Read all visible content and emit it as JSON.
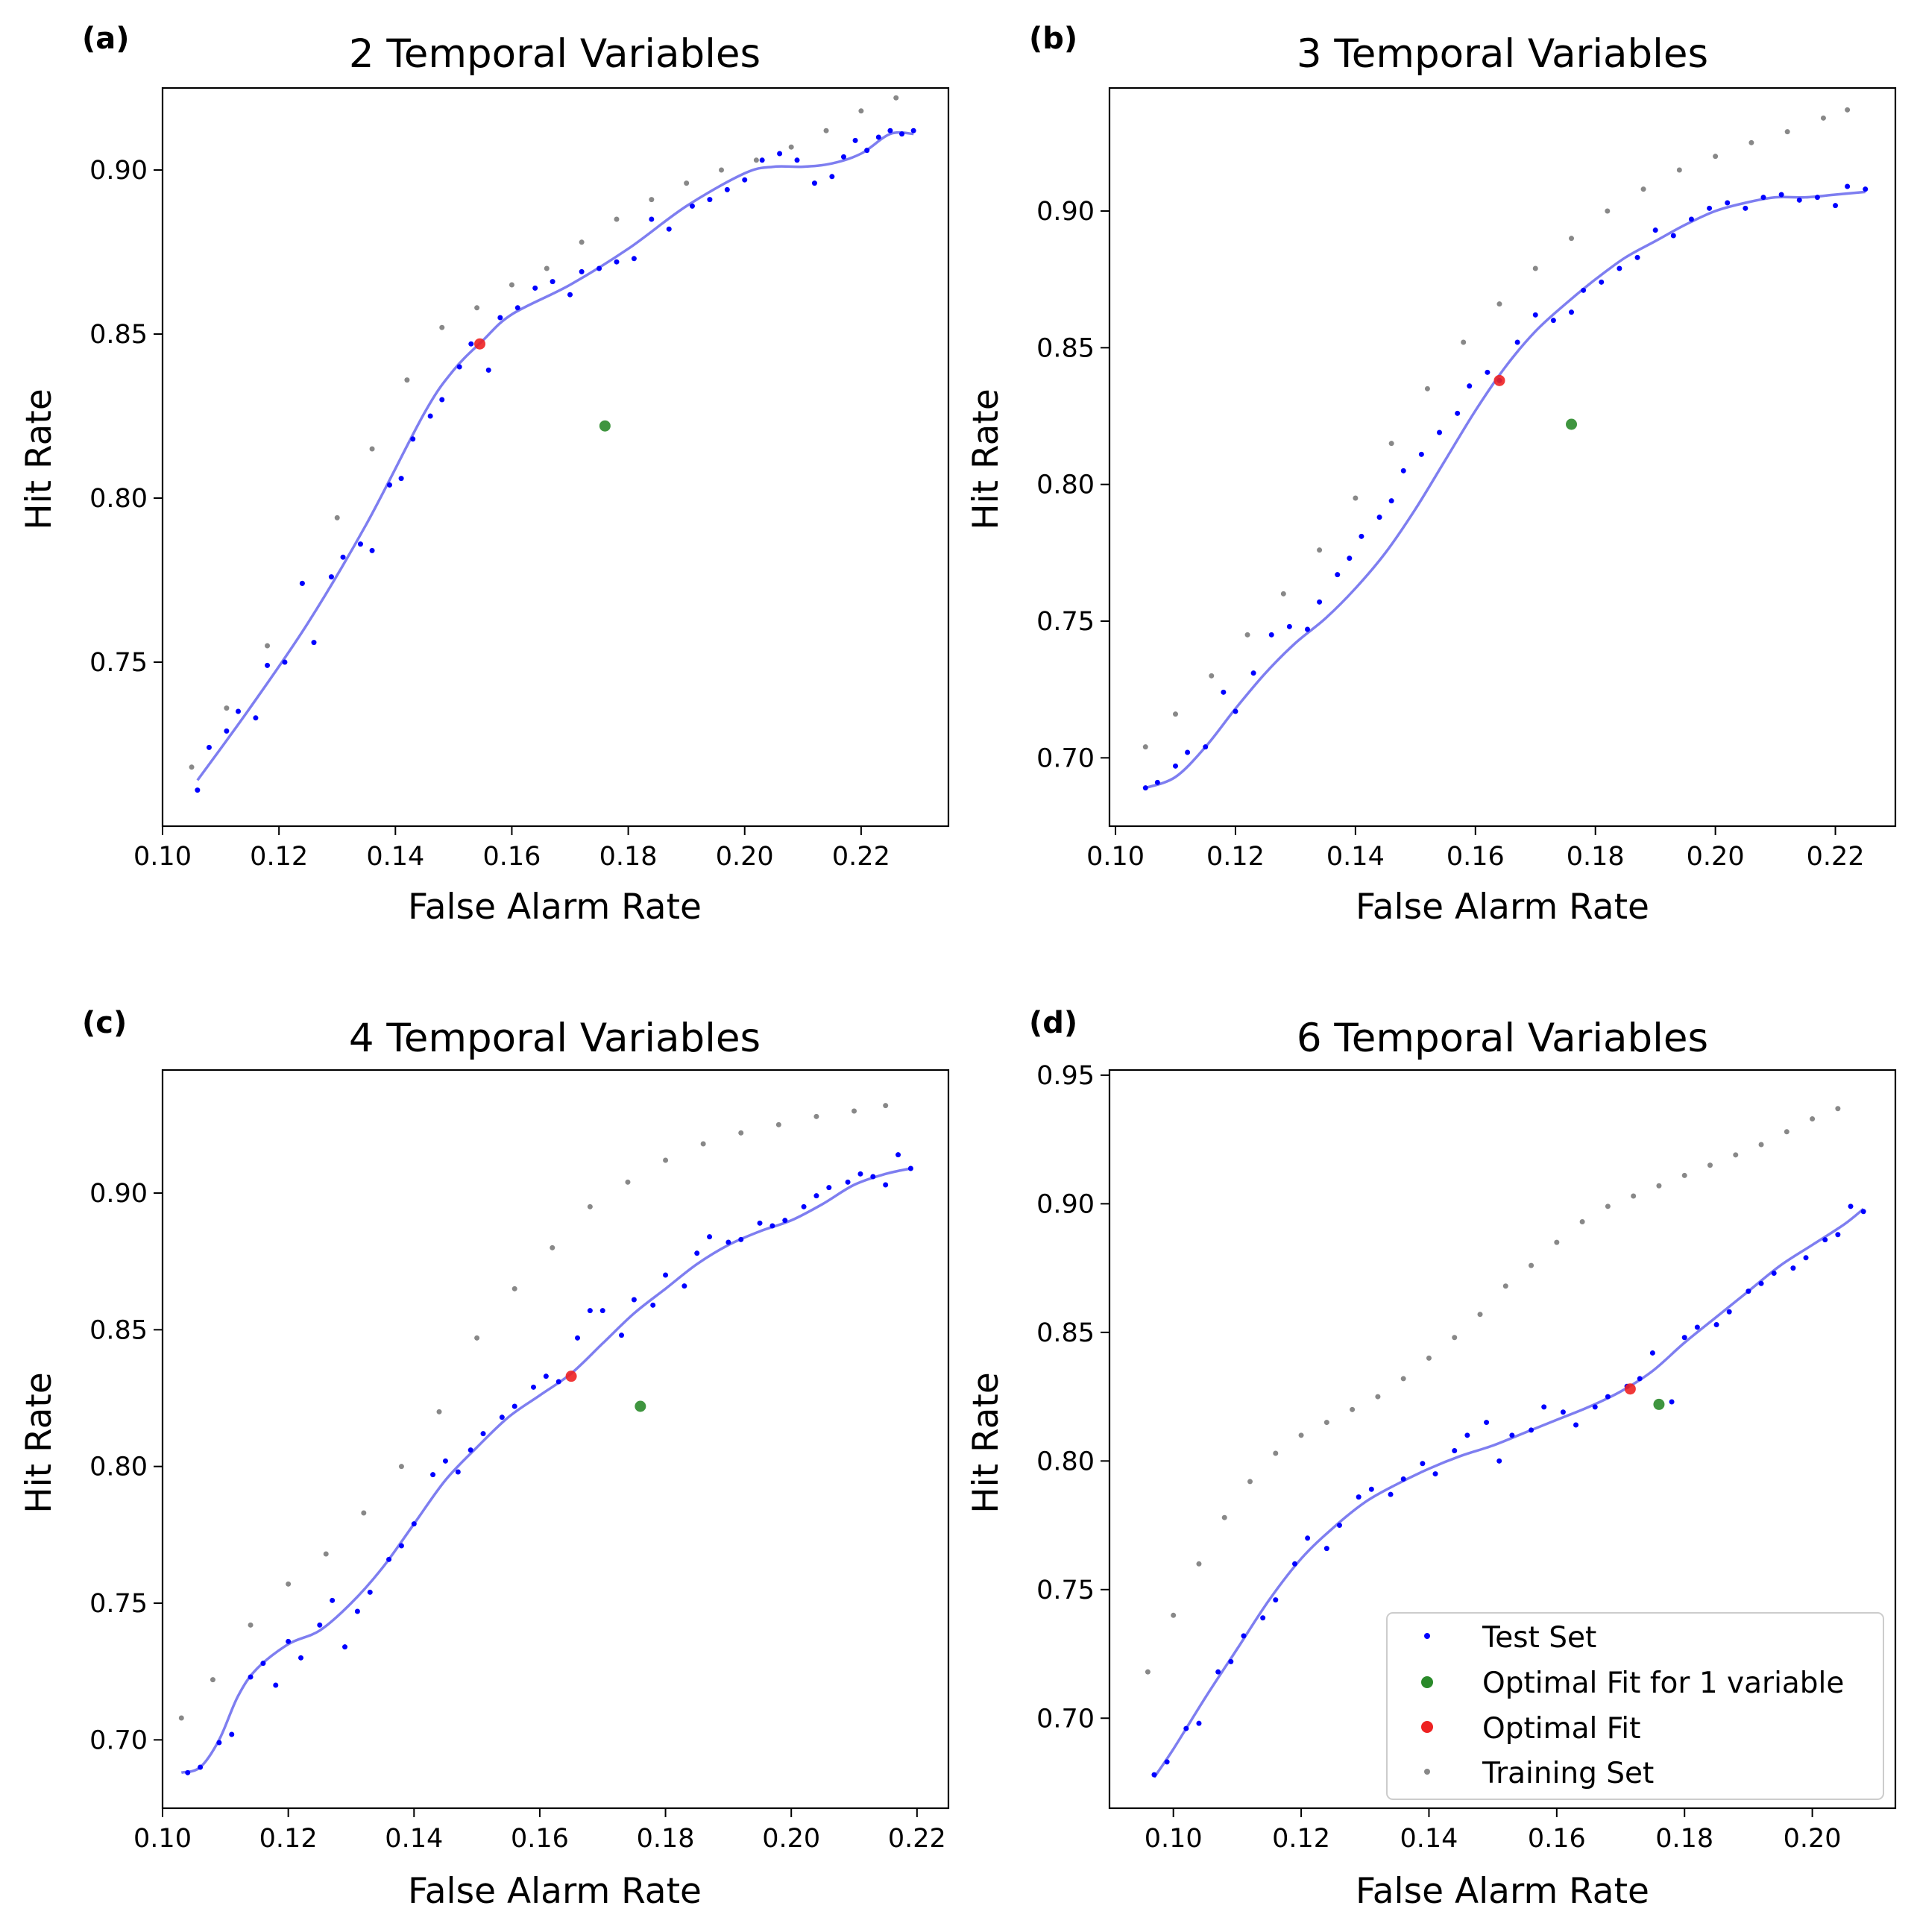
{
  "figure": {
    "legend": {
      "entries": [
        {
          "label": "Test Set",
          "color": "#0000ff",
          "marker": "small-dot"
        },
        {
          "label": "Optimal Fit for 1 variable",
          "color": "#008000",
          "marker": "dot"
        },
        {
          "label": "Optimal Fit",
          "color": "#ff0000",
          "marker": "dot"
        },
        {
          "label": "Training Set",
          "color": "#808080",
          "marker": "small-dot"
        }
      ],
      "placement": "lower-right of panel (d)"
    },
    "colors": {
      "test": "#0000ff",
      "curve": "#7070ee",
      "training": "#888888",
      "optimal": "#ee2222",
      "optimal_one_var": "#2a8a2a"
    }
  },
  "chart_data": [
    {
      "type": "scatter",
      "panel_label": "(a)",
      "title": "2 Temporal Variables",
      "xlabel": "False Alarm Rate",
      "ylabel": "Hit Rate",
      "xlim": [
        0.1,
        0.235
      ],
      "ylim": [
        0.7,
        0.925
      ],
      "xticks": [
        0.1,
        0.12,
        0.14,
        0.16,
        0.18,
        0.2,
        0.22
      ],
      "yticks": [
        0.75,
        0.8,
        0.85,
        0.9
      ],
      "xtick_labels": [
        "0.10",
        "0.12",
        "0.14",
        "0.16",
        "0.18",
        "0.20",
        "0.22"
      ],
      "ytick_labels": [
        "0.75",
        "0.80",
        "0.85",
        "0.90"
      ],
      "training": {
        "x": [
          0.105,
          0.111,
          0.118,
          0.124,
          0.13,
          0.136,
          0.142,
          0.148,
          0.154,
          0.16,
          0.166,
          0.172,
          0.178,
          0.184,
          0.19,
          0.196,
          0.202,
          0.208,
          0.214,
          0.22,
          0.226
        ],
        "y": [
          0.718,
          0.736,
          0.755,
          0.774,
          0.794,
          0.815,
          0.836,
          0.852,
          0.858,
          0.865,
          0.87,
          0.878,
          0.885,
          0.891,
          0.896,
          0.9,
          0.903,
          0.907,
          0.912,
          0.918,
          0.922
        ]
      },
      "test": {
        "x": [
          0.106,
          0.108,
          0.111,
          0.113,
          0.116,
          0.118,
          0.121,
          0.124,
          0.126,
          0.129,
          0.131,
          0.134,
          0.136,
          0.139,
          0.141,
          0.143,
          0.146,
          0.148,
          0.151,
          0.153,
          0.156,
          0.158,
          0.161,
          0.164,
          0.167,
          0.17,
          0.172,
          0.175,
          0.178,
          0.181,
          0.184,
          0.187,
          0.191,
          0.194,
          0.197,
          0.2,
          0.203,
          0.206,
          0.209,
          0.212,
          0.215,
          0.217,
          0.219,
          0.221,
          0.223,
          0.225,
          0.227,
          0.229
        ],
        "y": [
          0.711,
          0.724,
          0.729,
          0.735,
          0.733,
          0.749,
          0.75,
          0.774,
          0.756,
          0.776,
          0.782,
          0.786,
          0.784,
          0.804,
          0.806,
          0.818,
          0.825,
          0.83,
          0.84,
          0.847,
          0.839,
          0.855,
          0.858,
          0.864,
          0.866,
          0.862,
          0.869,
          0.87,
          0.872,
          0.873,
          0.885,
          0.882,
          0.889,
          0.891,
          0.894,
          0.897,
          0.903,
          0.905,
          0.903,
          0.896,
          0.898,
          0.904,
          0.909,
          0.906,
          0.91,
          0.912,
          0.911,
          0.912
        ]
      },
      "fit_curve": {
        "x": [
          0.106,
          0.115,
          0.125,
          0.135,
          0.145,
          0.15,
          0.155,
          0.16,
          0.17,
          0.18,
          0.19,
          0.2,
          0.205,
          0.21,
          0.215,
          0.22,
          0.225,
          0.229
        ],
        "y": [
          0.714,
          0.736,
          0.762,
          0.792,
          0.826,
          0.839,
          0.848,
          0.856,
          0.865,
          0.876,
          0.889,
          0.899,
          0.901,
          0.901,
          0.902,
          0.905,
          0.911,
          0.911
        ]
      },
      "optimal_fit": {
        "x": 0.1545,
        "y": 0.847
      },
      "optimal_fit_1_variable": {
        "x": 0.176,
        "y": 0.822
      }
    },
    {
      "type": "scatter",
      "panel_label": "(b)",
      "title": "3 Temporal Variables",
      "xlabel": "False Alarm Rate",
      "ylabel": "Hit Rate",
      "xlim": [
        0.099,
        0.23
      ],
      "ylim": [
        0.675,
        0.945
      ],
      "xticks": [
        0.1,
        0.12,
        0.14,
        0.16,
        0.18,
        0.2,
        0.22
      ],
      "yticks": [
        0.7,
        0.75,
        0.8,
        0.85,
        0.9
      ],
      "xtick_labels": [
        "0.10",
        "0.12",
        "0.14",
        "0.16",
        "0.18",
        "0.20",
        "0.22"
      ],
      "ytick_labels": [
        "0.70",
        "0.75",
        "0.80",
        "0.85",
        "0.90"
      ],
      "training": {
        "x": [
          0.105,
          0.11,
          0.116,
          0.122,
          0.128,
          0.134,
          0.14,
          0.146,
          0.152,
          0.158,
          0.164,
          0.17,
          0.176,
          0.182,
          0.188,
          0.194,
          0.2,
          0.206,
          0.212,
          0.218,
          0.222
        ],
        "y": [
          0.704,
          0.716,
          0.73,
          0.745,
          0.76,
          0.776,
          0.795,
          0.815,
          0.835,
          0.852,
          0.866,
          0.879,
          0.89,
          0.9,
          0.908,
          0.915,
          0.92,
          0.925,
          0.929,
          0.934,
          0.937
        ]
      },
      "test": {
        "x": [
          0.105,
          0.107,
          0.11,
          0.112,
          0.115,
          0.118,
          0.12,
          0.123,
          0.126,
          0.129,
          0.132,
          0.134,
          0.137,
          0.139,
          0.141,
          0.144,
          0.146,
          0.148,
          0.151,
          0.154,
          0.157,
          0.159,
          0.162,
          0.164,
          0.167,
          0.17,
          0.173,
          0.176,
          0.178,
          0.181,
          0.184,
          0.187,
          0.19,
          0.193,
          0.196,
          0.199,
          0.202,
          0.205,
          0.208,
          0.211,
          0.214,
          0.217,
          0.22,
          0.222,
          0.225
        ],
        "y": [
          0.689,
          0.691,
          0.697,
          0.702,
          0.704,
          0.724,
          0.717,
          0.731,
          0.745,
          0.748,
          0.747,
          0.757,
          0.767,
          0.773,
          0.781,
          0.788,
          0.794,
          0.805,
          0.811,
          0.819,
          0.826,
          0.836,
          0.841,
          0.838,
          0.852,
          0.862,
          0.86,
          0.863,
          0.871,
          0.874,
          0.879,
          0.883,
          0.893,
          0.891,
          0.897,
          0.901,
          0.903,
          0.901,
          0.905,
          0.906,
          0.904,
          0.905,
          0.902,
          0.909,
          0.908
        ]
      },
      "fit_curve": {
        "x": [
          0.105,
          0.11,
          0.115,
          0.12,
          0.125,
          0.13,
          0.135,
          0.14,
          0.145,
          0.15,
          0.155,
          0.16,
          0.165,
          0.17,
          0.175,
          0.18,
          0.185,
          0.19,
          0.195,
          0.2,
          0.205,
          0.21,
          0.215,
          0.22,
          0.225
        ],
        "y": [
          0.689,
          0.693,
          0.704,
          0.718,
          0.731,
          0.742,
          0.751,
          0.762,
          0.775,
          0.791,
          0.809,
          0.827,
          0.843,
          0.856,
          0.866,
          0.875,
          0.883,
          0.889,
          0.895,
          0.9,
          0.903,
          0.905,
          0.905,
          0.906,
          0.907
        ]
      },
      "optimal_fit": {
        "x": 0.164,
        "y": 0.838
      },
      "optimal_fit_1_variable": {
        "x": 0.176,
        "y": 0.822
      }
    },
    {
      "type": "scatter",
      "panel_label": "(c)",
      "title": "4 Temporal Variables",
      "xlabel": "False Alarm Rate",
      "ylabel": "Hit Rate",
      "xlim": [
        0.1,
        0.225
      ],
      "ylim": [
        0.675,
        0.945
      ],
      "xticks": [
        0.1,
        0.12,
        0.14,
        0.16,
        0.18,
        0.2,
        0.22
      ],
      "yticks": [
        0.7,
        0.75,
        0.8,
        0.85,
        0.9
      ],
      "xtick_labels": [
        "0.10",
        "0.12",
        "0.14",
        "0.16",
        "0.18",
        "0.20",
        "0.22"
      ],
      "ytick_labels": [
        "0.70",
        "0.75",
        "0.80",
        "0.85",
        "0.90"
      ],
      "training": {
        "x": [
          0.103,
          0.108,
          0.114,
          0.12,
          0.126,
          0.132,
          0.138,
          0.144,
          0.15,
          0.156,
          0.162,
          0.168,
          0.174,
          0.18,
          0.186,
          0.192,
          0.198,
          0.204,
          0.21,
          0.215
        ],
        "y": [
          0.708,
          0.722,
          0.742,
          0.757,
          0.768,
          0.783,
          0.8,
          0.82,
          0.847,
          0.865,
          0.88,
          0.895,
          0.904,
          0.912,
          0.918,
          0.922,
          0.925,
          0.928,
          0.93,
          0.932
        ]
      },
      "test": {
        "x": [
          0.104,
          0.106,
          0.109,
          0.111,
          0.114,
          0.116,
          0.118,
          0.12,
          0.122,
          0.125,
          0.127,
          0.129,
          0.131,
          0.133,
          0.136,
          0.138,
          0.14,
          0.143,
          0.145,
          0.147,
          0.149,
          0.151,
          0.154,
          0.156,
          0.159,
          0.161,
          0.163,
          0.166,
          0.168,
          0.17,
          0.173,
          0.175,
          0.178,
          0.18,
          0.183,
          0.185,
          0.187,
          0.19,
          0.192,
          0.195,
          0.197,
          0.199,
          0.202,
          0.204,
          0.206,
          0.209,
          0.211,
          0.213,
          0.215,
          0.217,
          0.219
        ],
        "y": [
          0.688,
          0.69,
          0.699,
          0.702,
          0.723,
          0.728,
          0.72,
          0.736,
          0.73,
          0.742,
          0.751,
          0.734,
          0.747,
          0.754,
          0.766,
          0.771,
          0.779,
          0.797,
          0.802,
          0.798,
          0.806,
          0.812,
          0.818,
          0.822,
          0.829,
          0.833,
          0.831,
          0.847,
          0.857,
          0.857,
          0.848,
          0.861,
          0.859,
          0.87,
          0.866,
          0.878,
          0.884,
          0.882,
          0.883,
          0.889,
          0.888,
          0.89,
          0.895,
          0.899,
          0.902,
          0.904,
          0.907,
          0.906,
          0.903,
          0.914,
          0.909
        ]
      },
      "fit_curve": {
        "x": [
          0.103,
          0.106,
          0.109,
          0.112,
          0.115,
          0.12,
          0.125,
          0.13,
          0.135,
          0.14,
          0.145,
          0.15,
          0.155,
          0.16,
          0.165,
          0.17,
          0.175,
          0.18,
          0.185,
          0.19,
          0.195,
          0.2,
          0.205,
          0.21,
          0.215,
          0.219
        ],
        "y": [
          0.688,
          0.69,
          0.7,
          0.716,
          0.726,
          0.735,
          0.74,
          0.75,
          0.763,
          0.779,
          0.795,
          0.807,
          0.818,
          0.826,
          0.834,
          0.845,
          0.856,
          0.865,
          0.874,
          0.881,
          0.886,
          0.89,
          0.896,
          0.903,
          0.907,
          0.909
        ]
      },
      "optimal_fit": {
        "x": 0.165,
        "y": 0.833
      },
      "optimal_fit_1_variable": {
        "x": 0.176,
        "y": 0.822
      }
    },
    {
      "type": "scatter",
      "panel_label": "(d)",
      "title": "6 Temporal Variables",
      "xlabel": "False Alarm Rate",
      "ylabel": "Hit Rate",
      "xlim": [
        0.09,
        0.213
      ],
      "ylim": [
        0.665,
        0.952
      ],
      "xticks": [
        0.1,
        0.12,
        0.14,
        0.16,
        0.18,
        0.2
      ],
      "yticks": [
        0.7,
        0.75,
        0.8,
        0.85,
        0.9,
        0.95
      ],
      "xtick_labels": [
        "0.10",
        "0.12",
        "0.14",
        "0.16",
        "0.18",
        "0.20"
      ],
      "ytick_labels": [
        "0.70",
        "0.75",
        "0.80",
        "0.85",
        "0.90",
        "0.95"
      ],
      "training": {
        "x": [
          0.096,
          0.1,
          0.104,
          0.108,
          0.112,
          0.116,
          0.12,
          0.124,
          0.128,
          0.132,
          0.136,
          0.14,
          0.144,
          0.148,
          0.152,
          0.156,
          0.16,
          0.164,
          0.168,
          0.172,
          0.176,
          0.18,
          0.184,
          0.188,
          0.192,
          0.196,
          0.2,
          0.204
        ],
        "y": [
          0.718,
          0.74,
          0.76,
          0.778,
          0.792,
          0.803,
          0.81,
          0.815,
          0.82,
          0.825,
          0.832,
          0.84,
          0.848,
          0.857,
          0.868,
          0.876,
          0.885,
          0.893,
          0.899,
          0.903,
          0.907,
          0.911,
          0.915,
          0.919,
          0.923,
          0.928,
          0.933,
          0.937
        ]
      },
      "test": {
        "x": [
          0.097,
          0.099,
          0.102,
          0.104,
          0.107,
          0.109,
          0.111,
          0.114,
          0.116,
          0.119,
          0.121,
          0.124,
          0.126,
          0.129,
          0.131,
          0.134,
          0.136,
          0.139,
          0.141,
          0.144,
          0.146,
          0.149,
          0.151,
          0.153,
          0.156,
          0.158,
          0.161,
          0.163,
          0.166,
          0.168,
          0.171,
          0.173,
          0.175,
          0.178,
          0.18,
          0.182,
          0.185,
          0.187,
          0.19,
          0.192,
          0.194,
          0.197,
          0.199,
          0.202,
          0.204,
          0.206,
          0.208
        ],
        "y": [
          0.678,
          0.683,
          0.696,
          0.698,
          0.718,
          0.722,
          0.732,
          0.739,
          0.746,
          0.76,
          0.77,
          0.766,
          0.775,
          0.786,
          0.789,
          0.787,
          0.793,
          0.799,
          0.795,
          0.804,
          0.81,
          0.815,
          0.8,
          0.81,
          0.812,
          0.821,
          0.819,
          0.814,
          0.821,
          0.825,
          0.829,
          0.832,
          0.842,
          0.823,
          0.848,
          0.852,
          0.853,
          0.858,
          0.866,
          0.869,
          0.873,
          0.875,
          0.879,
          0.886,
          0.888,
          0.899,
          0.897
        ]
      },
      "fit_curve": {
        "x": [
          0.097,
          0.1,
          0.105,
          0.11,
          0.115,
          0.12,
          0.125,
          0.13,
          0.135,
          0.14,
          0.145,
          0.15,
          0.155,
          0.16,
          0.165,
          0.17,
          0.175,
          0.18,
          0.185,
          0.19,
          0.195,
          0.2,
          0.205,
          0.208
        ],
        "y": [
          0.677,
          0.688,
          0.708,
          0.727,
          0.746,
          0.762,
          0.774,
          0.784,
          0.791,
          0.797,
          0.802,
          0.806,
          0.811,
          0.816,
          0.821,
          0.827,
          0.835,
          0.846,
          0.856,
          0.866,
          0.876,
          0.884,
          0.892,
          0.898
        ]
      },
      "optimal_fit": {
        "x": 0.1715,
        "y": 0.828
      },
      "optimal_fit_1_variable": {
        "x": 0.176,
        "y": 0.822
      }
    }
  ]
}
